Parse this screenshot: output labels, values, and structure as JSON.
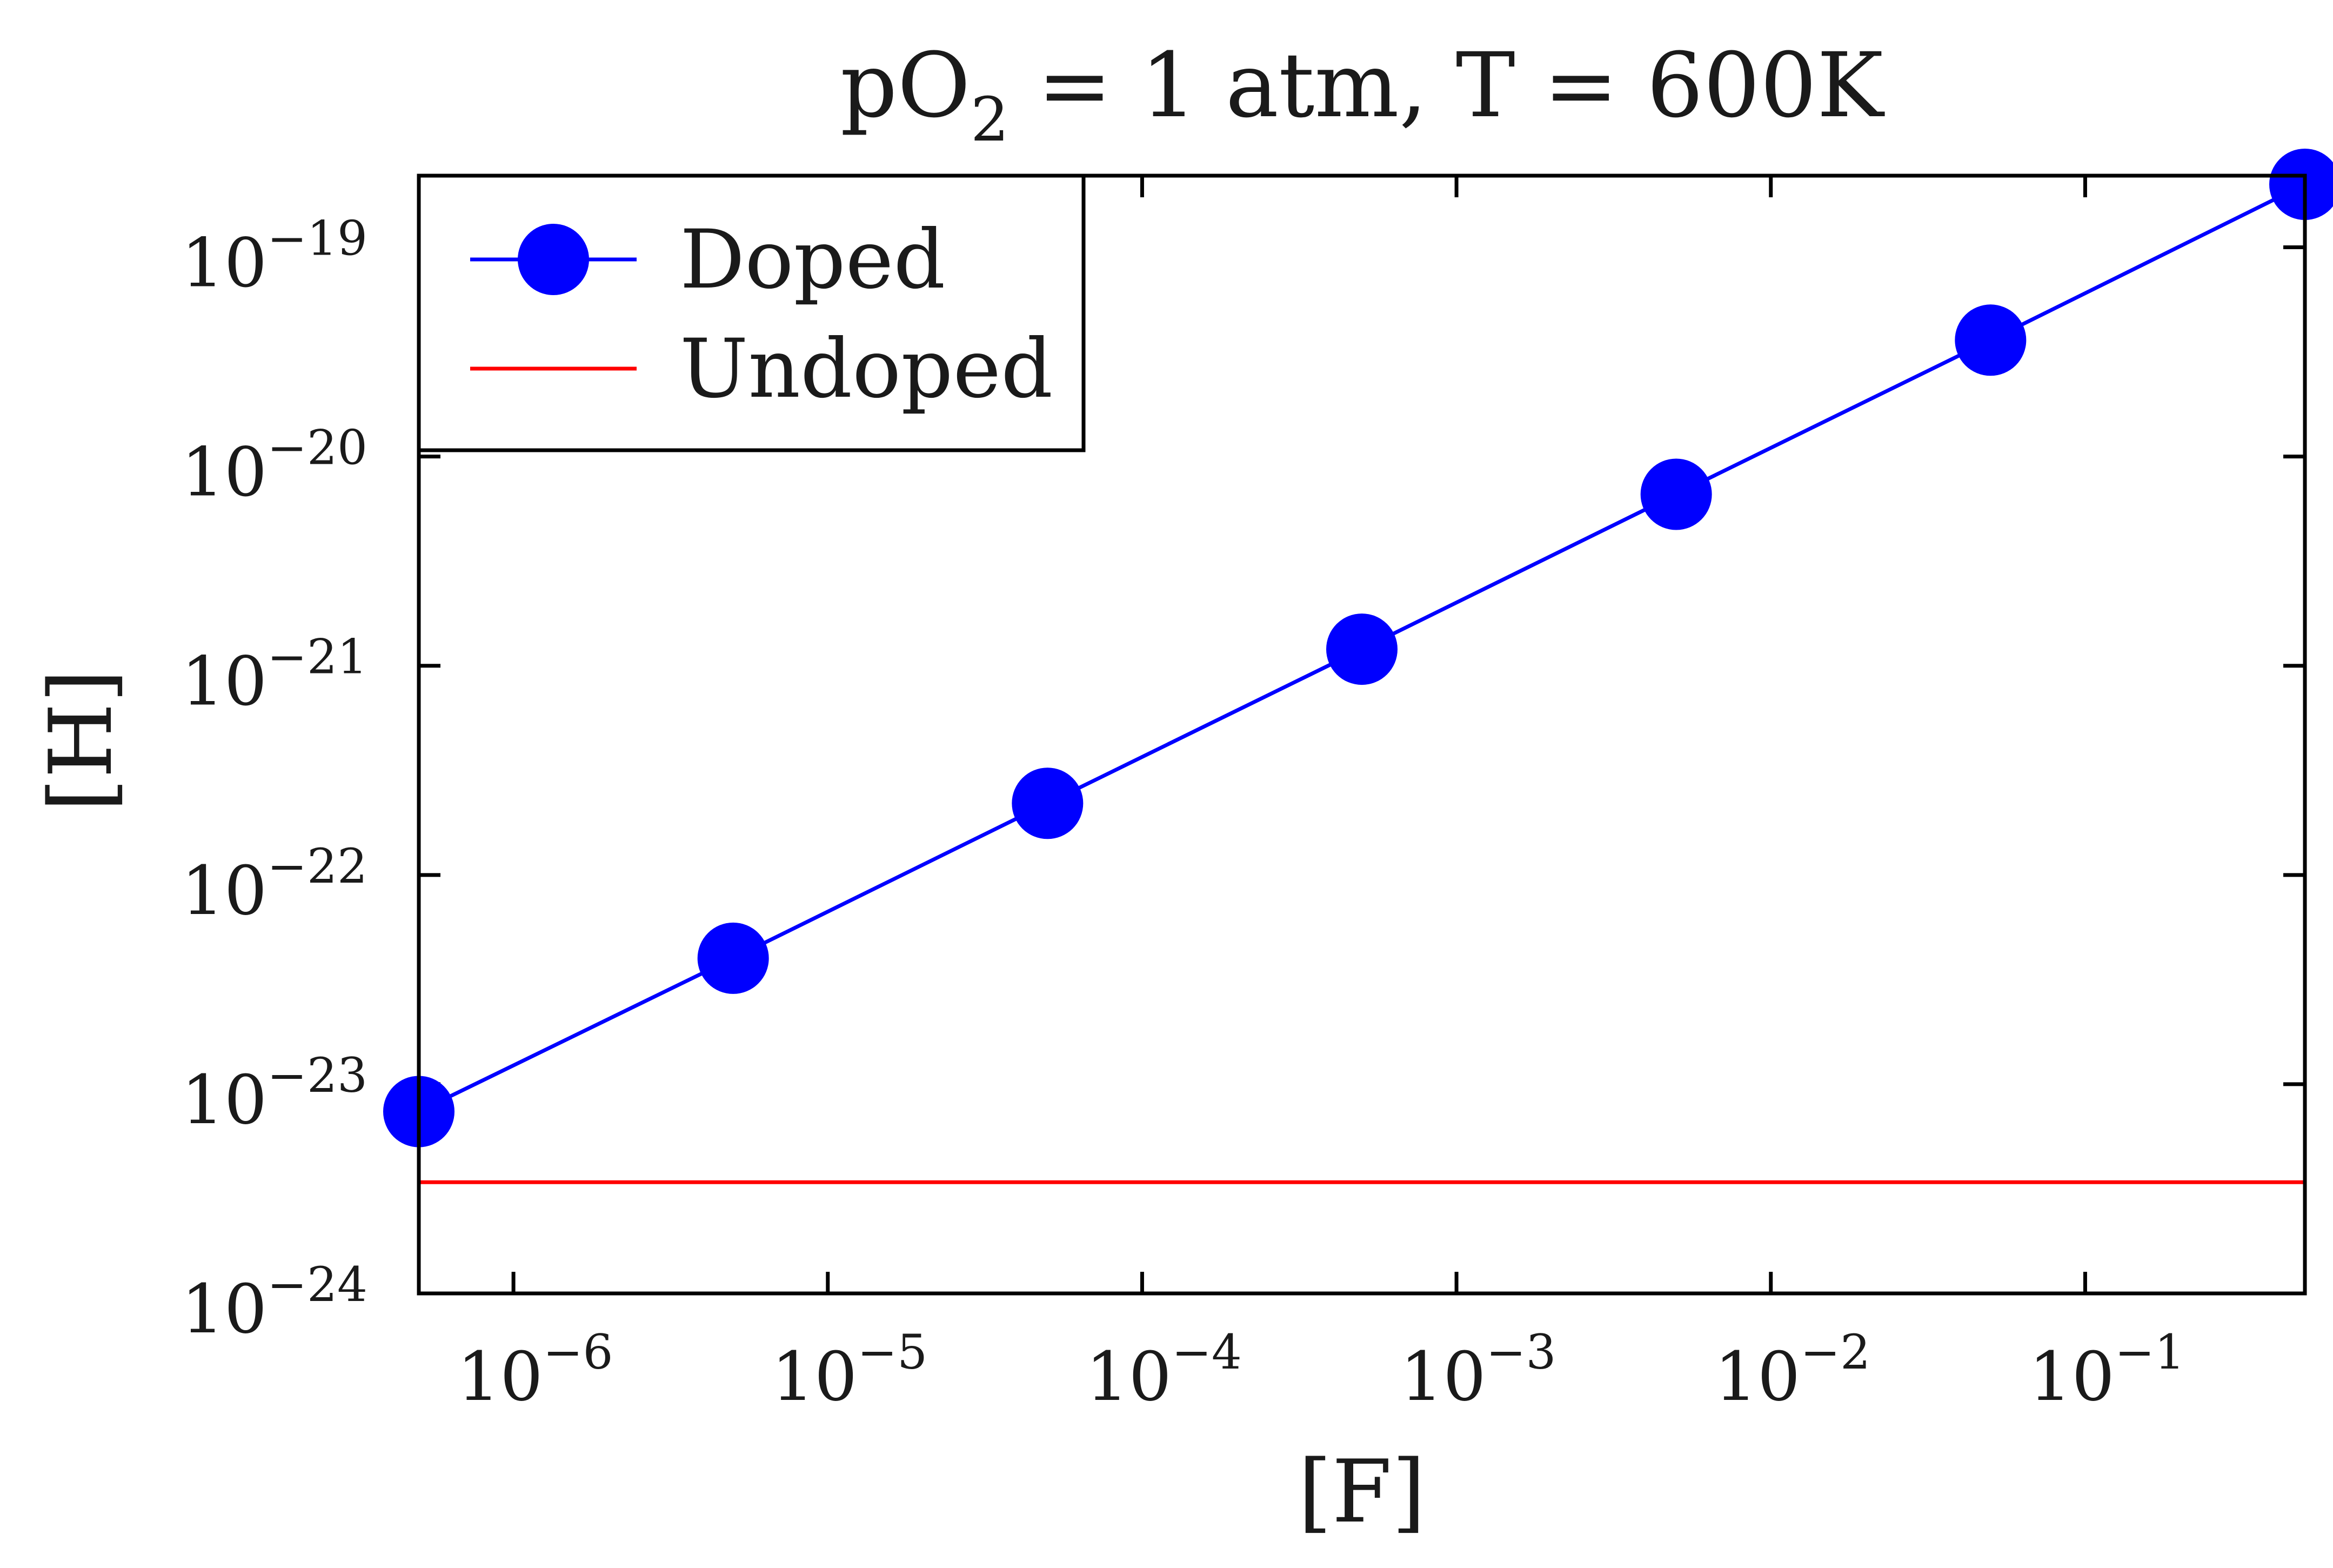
{
  "colors": {
    "doped": "#0000ff",
    "undoped": "#ff0000",
    "axes": "#000000",
    "text": "#1a1a1a"
  },
  "chart_data": {
    "type": "line",
    "title": {
      "prefix": "pO",
      "subscript": "2",
      "suffix": " = 1 atm, T = 600K"
    },
    "xlabel": "[F]",
    "ylabel": "[H]",
    "xscale": "log",
    "yscale": "log",
    "xlim": [
      5e-07,
      0.5
    ],
    "ylim": [
      1e-24,
      2.2e-19
    ],
    "x_ticks": [
      {
        "value": 1e-06,
        "base": "10",
        "exp": "−6"
      },
      {
        "value": 1e-05,
        "base": "10",
        "exp": "−5"
      },
      {
        "value": 0.0001,
        "base": "10",
        "exp": "−4"
      },
      {
        "value": 0.001,
        "base": "10",
        "exp": "−3"
      },
      {
        "value": 0.01,
        "base": "10",
        "exp": "−2"
      },
      {
        "value": 0.1,
        "base": "10",
        "exp": "−1"
      }
    ],
    "y_ticks": [
      {
        "value": 1e-24,
        "base": "10",
        "exp": "−24"
      },
      {
        "value": 1e-23,
        "base": "10",
        "exp": "−23"
      },
      {
        "value": 1e-22,
        "base": "10",
        "exp": "−22"
      },
      {
        "value": 1e-21,
        "base": "10",
        "exp": "−21"
      },
      {
        "value": 1e-20,
        "base": "10",
        "exp": "−20"
      },
      {
        "value": 1e-19,
        "base": "10",
        "exp": "−19"
      }
    ],
    "legend_position": "top-left",
    "grid": false,
    "series": [
      {
        "name": "Doped",
        "marker": "circle",
        "x": [
          5e-07,
          5e-06,
          5e-05,
          0.0005,
          0.005,
          0.05,
          0.5
        ],
        "y": [
          7.4e-24,
          4e-23,
          2.2e-22,
          1.2e-21,
          6.6e-21,
          3.6e-20,
          2e-19
        ]
      },
      {
        "name": "Undoped",
        "marker": "none",
        "x": [
          5e-07,
          0.5
        ],
        "y": [
          3.4e-24,
          3.4e-24
        ]
      }
    ]
  }
}
